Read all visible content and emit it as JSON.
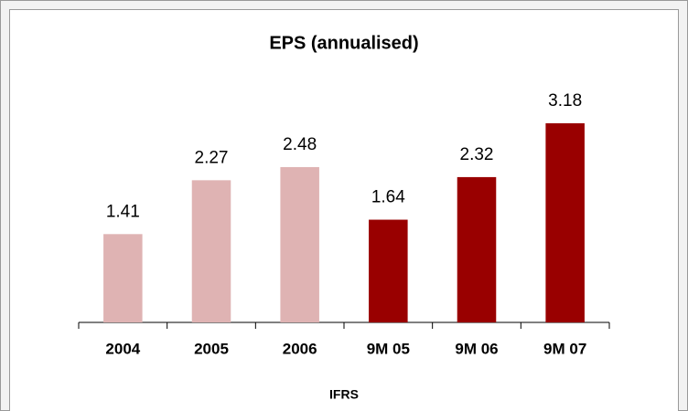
{
  "chart_data": {
    "type": "bar",
    "title": "EPS (annualised)",
    "x_label": "IFRS",
    "categories": [
      "2004",
      "2005",
      "2006",
      "9M 05",
      "9M 06",
      "9M 07"
    ],
    "values": [
      1.41,
      2.27,
      2.48,
      1.64,
      2.32,
      3.18
    ],
    "colors": [
      "#dfb3b3",
      "#dfb3b3",
      "#dfb3b3",
      "#990000",
      "#990000",
      "#990000"
    ],
    "ylim": [
      0,
      3.5
    ]
  }
}
